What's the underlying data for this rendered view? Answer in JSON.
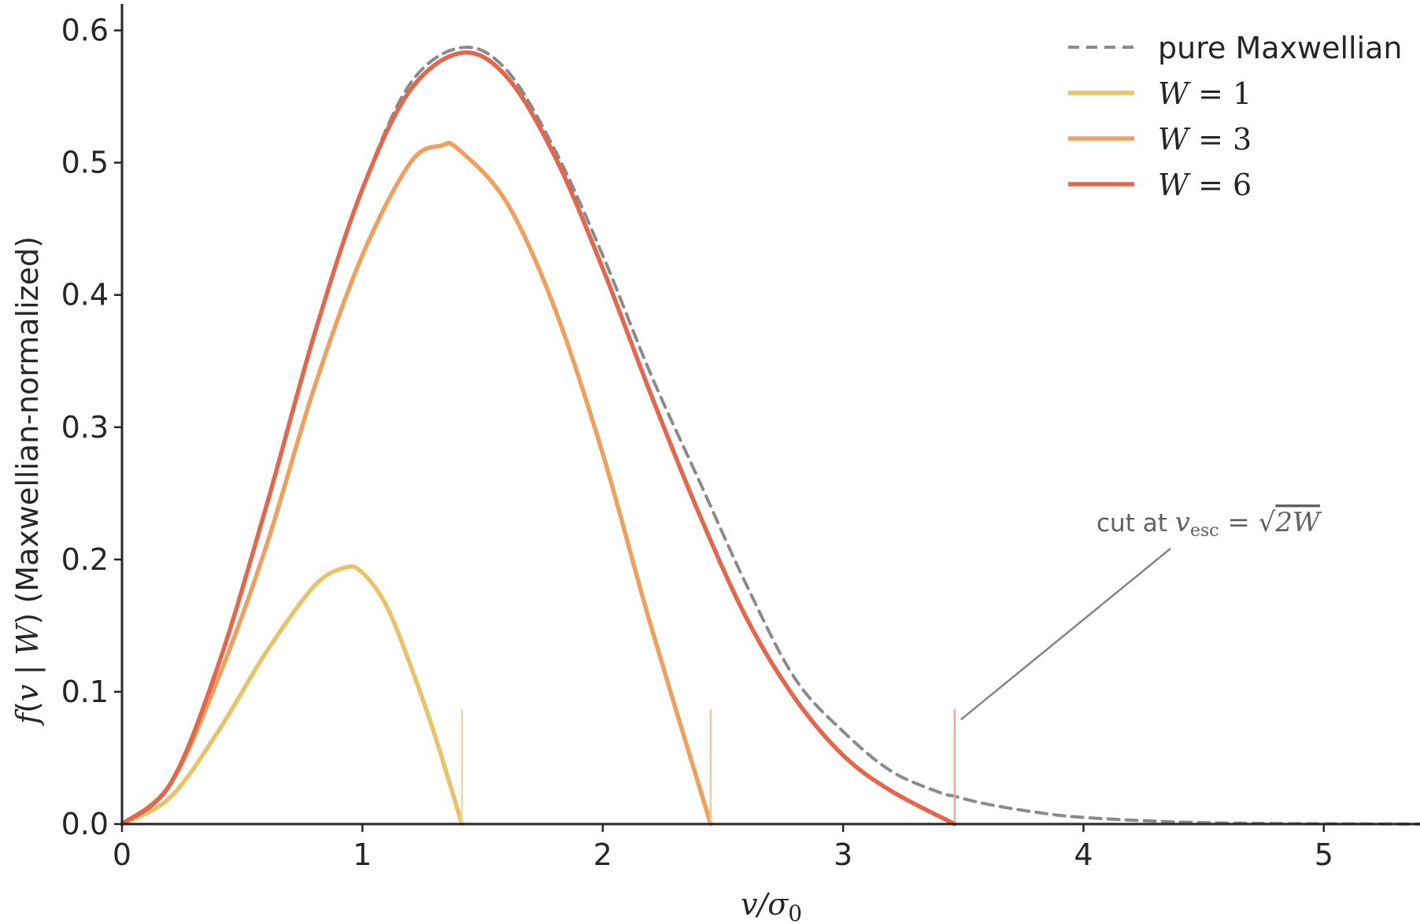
{
  "chart_data": {
    "type": "line",
    "xlabel": "v/σ0",
    "ylabel": "f(v | W)  (Maxwellian-normalized)",
    "xlim": [
      0,
      5.4
    ],
    "ylim": [
      0,
      0.62
    ],
    "x_ticks": [
      "0",
      "1",
      "2",
      "3",
      "4",
      "5"
    ],
    "y_ticks": [
      "0.0",
      "0.1",
      "0.2",
      "0.3",
      "0.4",
      "0.5",
      "0.6"
    ],
    "grid": false,
    "legend_position": "top-right",
    "legend": [
      {
        "label": "pure Maxwellian",
        "style": "dashed",
        "color": "#8a8a8a"
      },
      {
        "label": "W = 1",
        "style": "solid",
        "color": "#e8c36a"
      },
      {
        "label": "W = 3",
        "style": "solid",
        "color": "#eea15f"
      },
      {
        "label": "W = 6",
        "style": "solid",
        "color": "#e2674c"
      }
    ],
    "series": [
      {
        "name": "pure Maxwellian",
        "color": "#8a8a8a",
        "x": [
          0,
          0.2,
          0.4,
          0.6,
          0.8,
          1.0,
          1.2,
          1.414,
          1.6,
          1.8,
          2.0,
          2.2,
          2.4,
          2.6,
          2.8,
          3.0,
          3.2,
          3.4,
          3.464,
          3.6,
          3.8,
          4.0,
          4.4,
          4.8,
          5.2,
          5.4
        ],
        "y": [
          0,
          0.03,
          0.12,
          0.24,
          0.37,
          0.48,
          0.56,
          0.587,
          0.57,
          0.51,
          0.43,
          0.34,
          0.26,
          0.18,
          0.11,
          0.07,
          0.04,
          0.024,
          0.021,
          0.015,
          0.009,
          0.005,
          0.0015,
          0.0004,
          0.0001,
          0.0
        ]
      },
      {
        "name": "W = 1",
        "color": "#e8c36a",
        "x": [
          0,
          0.2,
          0.4,
          0.6,
          0.8,
          0.93,
          1.0,
          1.1,
          1.2,
          1.3,
          1.414
        ],
        "y": [
          0,
          0.02,
          0.07,
          0.13,
          0.18,
          0.194,
          0.19,
          0.165,
          0.12,
          0.068,
          0
        ]
      },
      {
        "name": "W = 3",
        "color": "#eea15f",
        "x": [
          0,
          0.2,
          0.4,
          0.6,
          0.8,
          1.0,
          1.2,
          1.33,
          1.4,
          1.6,
          1.8,
          2.0,
          2.2,
          2.449
        ],
        "y": [
          0,
          0.03,
          0.11,
          0.21,
          0.33,
          0.43,
          0.5,
          0.513,
          0.51,
          0.47,
          0.39,
          0.28,
          0.15,
          0
        ]
      },
      {
        "name": "W = 6",
        "color": "#e2674c",
        "x": [
          0,
          0.2,
          0.4,
          0.6,
          0.8,
          1.0,
          1.2,
          1.414,
          1.6,
          1.8,
          2.0,
          2.2,
          2.4,
          2.6,
          2.8,
          3.0,
          3.2,
          3.464
        ],
        "y": [
          0,
          0.03,
          0.12,
          0.24,
          0.37,
          0.48,
          0.555,
          0.583,
          0.565,
          0.505,
          0.42,
          0.325,
          0.235,
          0.155,
          0.095,
          0.052,
          0.025,
          0
        ]
      }
    ],
    "cutoff_markers": [
      {
        "x": 1.414,
        "color": "#f1d9a6"
      },
      {
        "x": 2.449,
        "color": "#f3c6a0"
      },
      {
        "x": 3.464,
        "color": "#f2a59a"
      }
    ],
    "annotation": {
      "text": "cut at v_esc = √(2W)",
      "prefix": "cut at ",
      "v": "v",
      "sub": "esc",
      "eq": " = √",
      "arg": "2W",
      "points_to_x": 3.464
    }
  }
}
